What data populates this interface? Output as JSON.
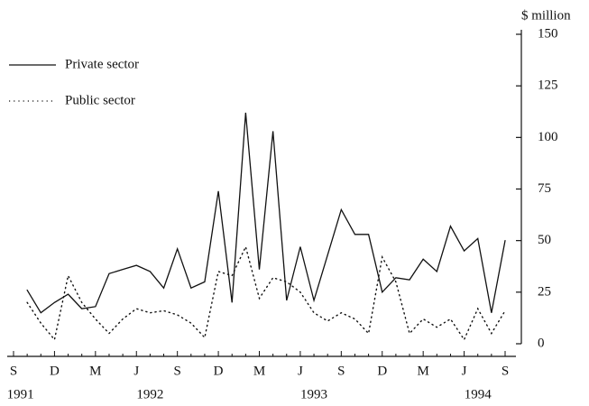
{
  "chart_data": {
    "type": "line",
    "y_axis_label": "$ million",
    "categories": [
      "S",
      null,
      null,
      "D",
      null,
      null,
      "M",
      null,
      null,
      "J",
      null,
      null,
      "S",
      null,
      null,
      "D",
      null,
      null,
      "M",
      null,
      null,
      "J",
      null,
      null,
      "S",
      null,
      null,
      "D",
      null,
      null,
      "M",
      null,
      null,
      "J",
      null,
      null,
      "S"
    ],
    "years": [
      "1991",
      "1992",
      "1993",
      "1994"
    ],
    "series": [
      {
        "name": "Private sector",
        "color": "#111111",
        "line_style": "solid",
        "values": [
          null,
          26,
          15,
          20,
          24,
          17,
          18,
          34,
          36,
          38,
          35,
          27,
          46,
          27,
          30,
          74,
          20,
          112,
          36,
          103,
          21,
          47,
          21,
          43,
          65,
          53,
          53,
          25,
          32,
          31,
          41,
          35,
          57,
          45,
          51,
          15,
          50
        ]
      },
      {
        "name": "Public sector",
        "color": "#111111",
        "line_style": "dotted",
        "values": [
          null,
          20,
          10,
          2,
          33,
          20,
          12,
          5,
          12,
          17,
          15,
          16,
          14,
          10,
          3,
          35,
          33,
          47,
          22,
          32,
          30,
          25,
          15,
          11,
          15,
          12,
          5,
          42,
          30,
          5,
          12,
          8,
          12,
          2,
          17,
          5,
          16
        ]
      }
    ],
    "ylim": [
      0,
      150
    ],
    "yticks": [
      0,
      25,
      50,
      75,
      100,
      125,
      150
    ],
    "y_axis_side": "right",
    "grid": false
  }
}
